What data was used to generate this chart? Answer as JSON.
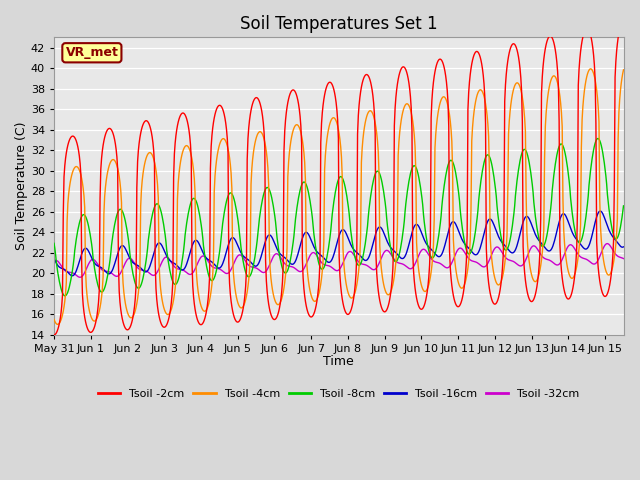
{
  "title": "Soil Temperatures Set 1",
  "xlabel": "Time",
  "ylabel": "Soil Temperature (C)",
  "ylim": [
    14,
    43
  ],
  "yticks": [
    14,
    16,
    18,
    20,
    22,
    24,
    26,
    28,
    30,
    32,
    34,
    36,
    38,
    40,
    42
  ],
  "xtick_labels": [
    "May 31",
    "Jun 1",
    "Jun 2",
    "Jun 3",
    "Jun 4",
    "Jun 5",
    "Jun 6",
    "Jun 7",
    "Jun 8",
    "Jun 9",
    "Jun 10",
    "Jun 11",
    "Jun 12",
    "Jun 13",
    "Jun 14",
    "Jun 15"
  ],
  "annotation_text": "VR_met",
  "annotation_color": "#8B0000",
  "annotation_bg": "#FFFF99",
  "line_colors": {
    "2cm": "#FF0000",
    "4cm": "#FF8C00",
    "8cm": "#00CC00",
    "16cm": "#0000CC",
    "32cm": "#CC00CC"
  },
  "legend_labels": [
    "Tsoil -2cm",
    "Tsoil -4cm",
    "Tsoil -8cm",
    "Tsoil -16cm",
    "Tsoil -32cm"
  ],
  "bg_color": "#D8D8D8",
  "plot_bg": "#E8E8E8",
  "n_days": 15.5,
  "n_points": 744
}
